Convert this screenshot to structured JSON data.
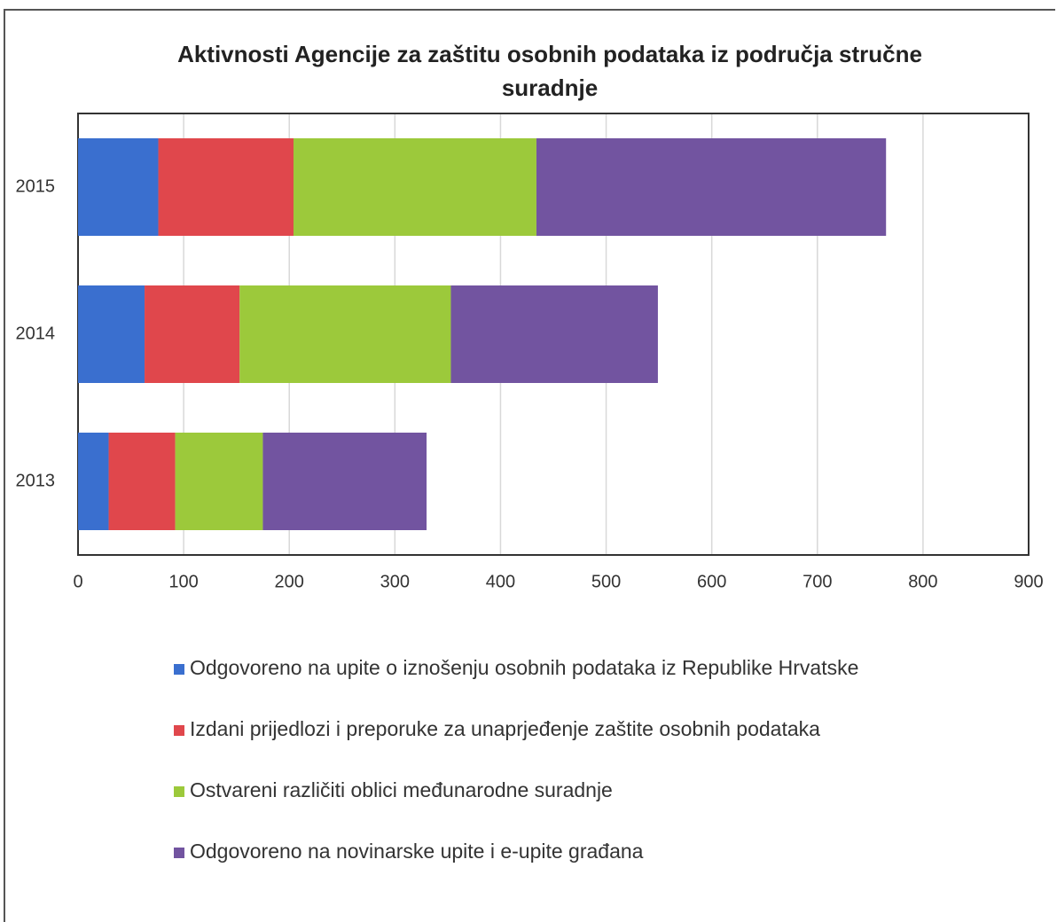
{
  "chart_data": {
    "type": "stacked-barh",
    "title": "Aktivnosti Agencije za zaštitu osobnih podataka iz područja stručne suradnje",
    "categories": [
      "2013",
      "2014",
      "2015"
    ],
    "series": [
      {
        "name": "Odgovoreno na upite o iznošenju osobnih podataka iz Republike Hrvatske",
        "color": "#3a6fcf",
        "values": [
          29,
          63,
          76
        ]
      },
      {
        "name": "Izdani prijedlozi i preporuke za unaprjeđenje zaštite osobnih podataka",
        "color": "#e0474c",
        "values": [
          63,
          90,
          128
        ]
      },
      {
        "name": "Ostvareni različiti oblici međunarodne suradnje",
        "color": "#9cc93b",
        "values": [
          83,
          200,
          230
        ]
      },
      {
        "name": "Odgovoreno na novinarske upite i e-upite građana",
        "color": "#7254a0",
        "values": [
          155,
          196,
          331
        ]
      }
    ],
    "xlim": [
      0,
      900
    ],
    "xticks": [
      0,
      100,
      200,
      300,
      400,
      500,
      600,
      700,
      800,
      900
    ],
    "grid": true,
    "legend": "bottom"
  }
}
